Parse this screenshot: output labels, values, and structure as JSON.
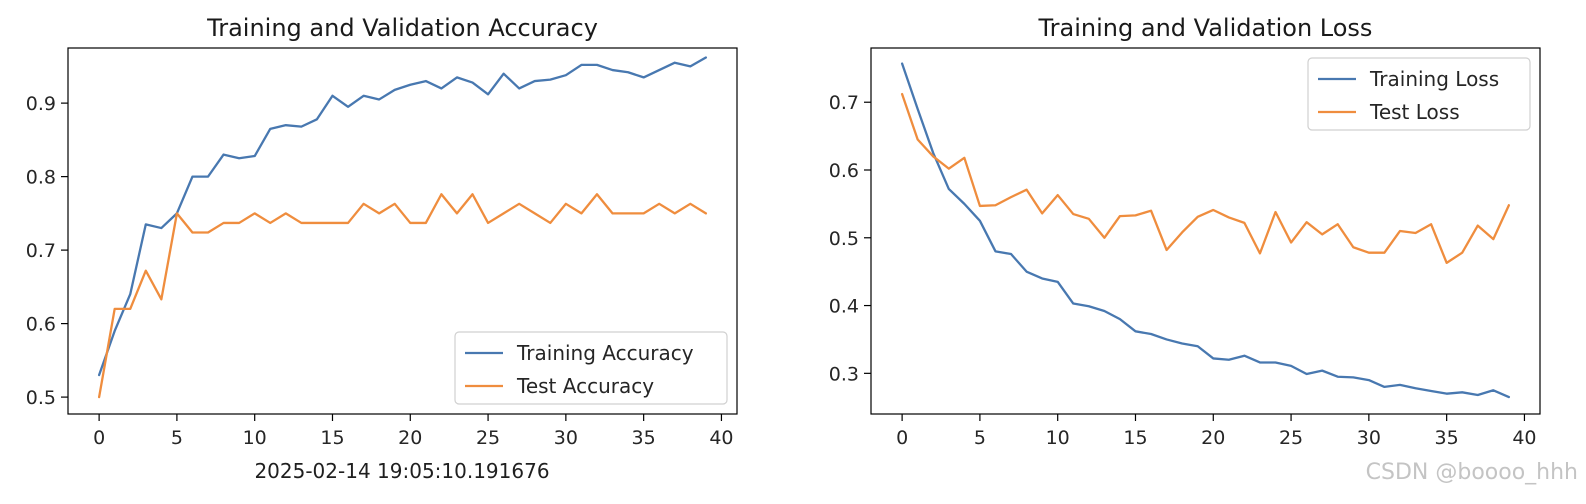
{
  "chart_data": [
    {
      "type": "line",
      "title": "Training and Validation Accuracy",
      "xlabel": "",
      "ylabel": "",
      "xlim": [
        -2,
        41
      ],
      "ylim": [
        0.477,
        0.975
      ],
      "xticks": [
        0,
        5,
        10,
        15,
        20,
        25,
        30,
        35,
        40
      ],
      "yticks": [
        0.5,
        0.6,
        0.7,
        0.8,
        0.9
      ],
      "grid": false,
      "legend": "bottom-right",
      "x": [
        0,
        1,
        2,
        3,
        4,
        5,
        6,
        7,
        8,
        9,
        10,
        11,
        12,
        13,
        14,
        15,
        16,
        17,
        18,
        19,
        20,
        21,
        22,
        23,
        24,
        25,
        26,
        27,
        28,
        29,
        30,
        31,
        32,
        33,
        34,
        35,
        36,
        37,
        38,
        39
      ],
      "series": [
        {
          "name": "Training Accuracy",
          "color": "#4878b0",
          "values": [
            0.53,
            0.59,
            0.64,
            0.735,
            0.73,
            0.75,
            0.8,
            0.8,
            0.83,
            0.825,
            0.828,
            0.865,
            0.87,
            0.868,
            0.878,
            0.91,
            0.895,
            0.91,
            0.905,
            0.918,
            0.925,
            0.93,
            0.92,
            0.935,
            0.928,
            0.912,
            0.94,
            0.92,
            0.93,
            0.932,
            0.938,
            0.952,
            0.952,
            0.945,
            0.942,
            0.935,
            0.945,
            0.955,
            0.95,
            0.962
          ]
        },
        {
          "name": "Test Accuracy",
          "color": "#ef8d3e",
          "values": [
            0.5,
            0.62,
            0.62,
            0.672,
            0.633,
            0.75,
            0.724,
            0.724,
            0.737,
            0.737,
            0.75,
            0.737,
            0.75,
            0.737,
            0.737,
            0.737,
            0.737,
            0.763,
            0.75,
            0.763,
            0.737,
            0.737,
            0.776,
            0.75,
            0.776,
            0.737,
            0.75,
            0.763,
            0.75,
            0.737,
            0.763,
            0.75,
            0.776,
            0.75,
            0.75,
            0.75,
            0.763,
            0.75,
            0.763,
            0.75
          ]
        }
      ]
    },
    {
      "type": "line",
      "title": "Training and Validation Loss",
      "xlabel": "",
      "ylabel": "",
      "xlim": [
        -2,
        41
      ],
      "ylim": [
        0.24,
        0.78
      ],
      "xticks": [
        0,
        5,
        10,
        15,
        20,
        25,
        30,
        35,
        40
      ],
      "yticks": [
        0.3,
        0.4,
        0.5,
        0.6,
        0.7
      ],
      "grid": false,
      "legend": "top-right",
      "x": [
        0,
        1,
        2,
        3,
        4,
        5,
        6,
        7,
        8,
        9,
        10,
        11,
        12,
        13,
        14,
        15,
        16,
        17,
        18,
        19,
        20,
        21,
        22,
        23,
        24,
        25,
        26,
        27,
        28,
        29,
        30,
        31,
        32,
        33,
        34,
        35,
        36,
        37,
        38,
        39
      ],
      "series": [
        {
          "name": "Training Loss",
          "color": "#4878b0",
          "values": [
            0.757,
            0.69,
            0.625,
            0.572,
            0.55,
            0.525,
            0.48,
            0.476,
            0.45,
            0.44,
            0.435,
            0.403,
            0.399,
            0.392,
            0.38,
            0.362,
            0.358,
            0.35,
            0.344,
            0.34,
            0.322,
            0.32,
            0.326,
            0.316,
            0.316,
            0.311,
            0.299,
            0.304,
            0.295,
            0.294,
            0.29,
            0.28,
            0.283,
            0.278,
            0.274,
            0.27,
            0.272,
            0.268,
            0.275,
            0.265
          ]
        },
        {
          "name": "Test Loss",
          "color": "#ef8d3e",
          "values": [
            0.712,
            0.645,
            0.62,
            0.602,
            0.618,
            0.547,
            0.548,
            0.56,
            0.571,
            0.536,
            0.563,
            0.535,
            0.528,
            0.5,
            0.532,
            0.533,
            0.54,
            0.482,
            0.508,
            0.531,
            0.541,
            0.53,
            0.522,
            0.477,
            0.538,
            0.493,
            0.523,
            0.505,
            0.52,
            0.486,
            0.478,
            0.478,
            0.51,
            0.507,
            0.52,
            0.463,
            0.478,
            0.518,
            0.498,
            0.548
          ]
        }
      ]
    }
  ],
  "footnote": "2025-02-14 19:05:10.191676",
  "watermark": "CSDN @boooo_hhh"
}
